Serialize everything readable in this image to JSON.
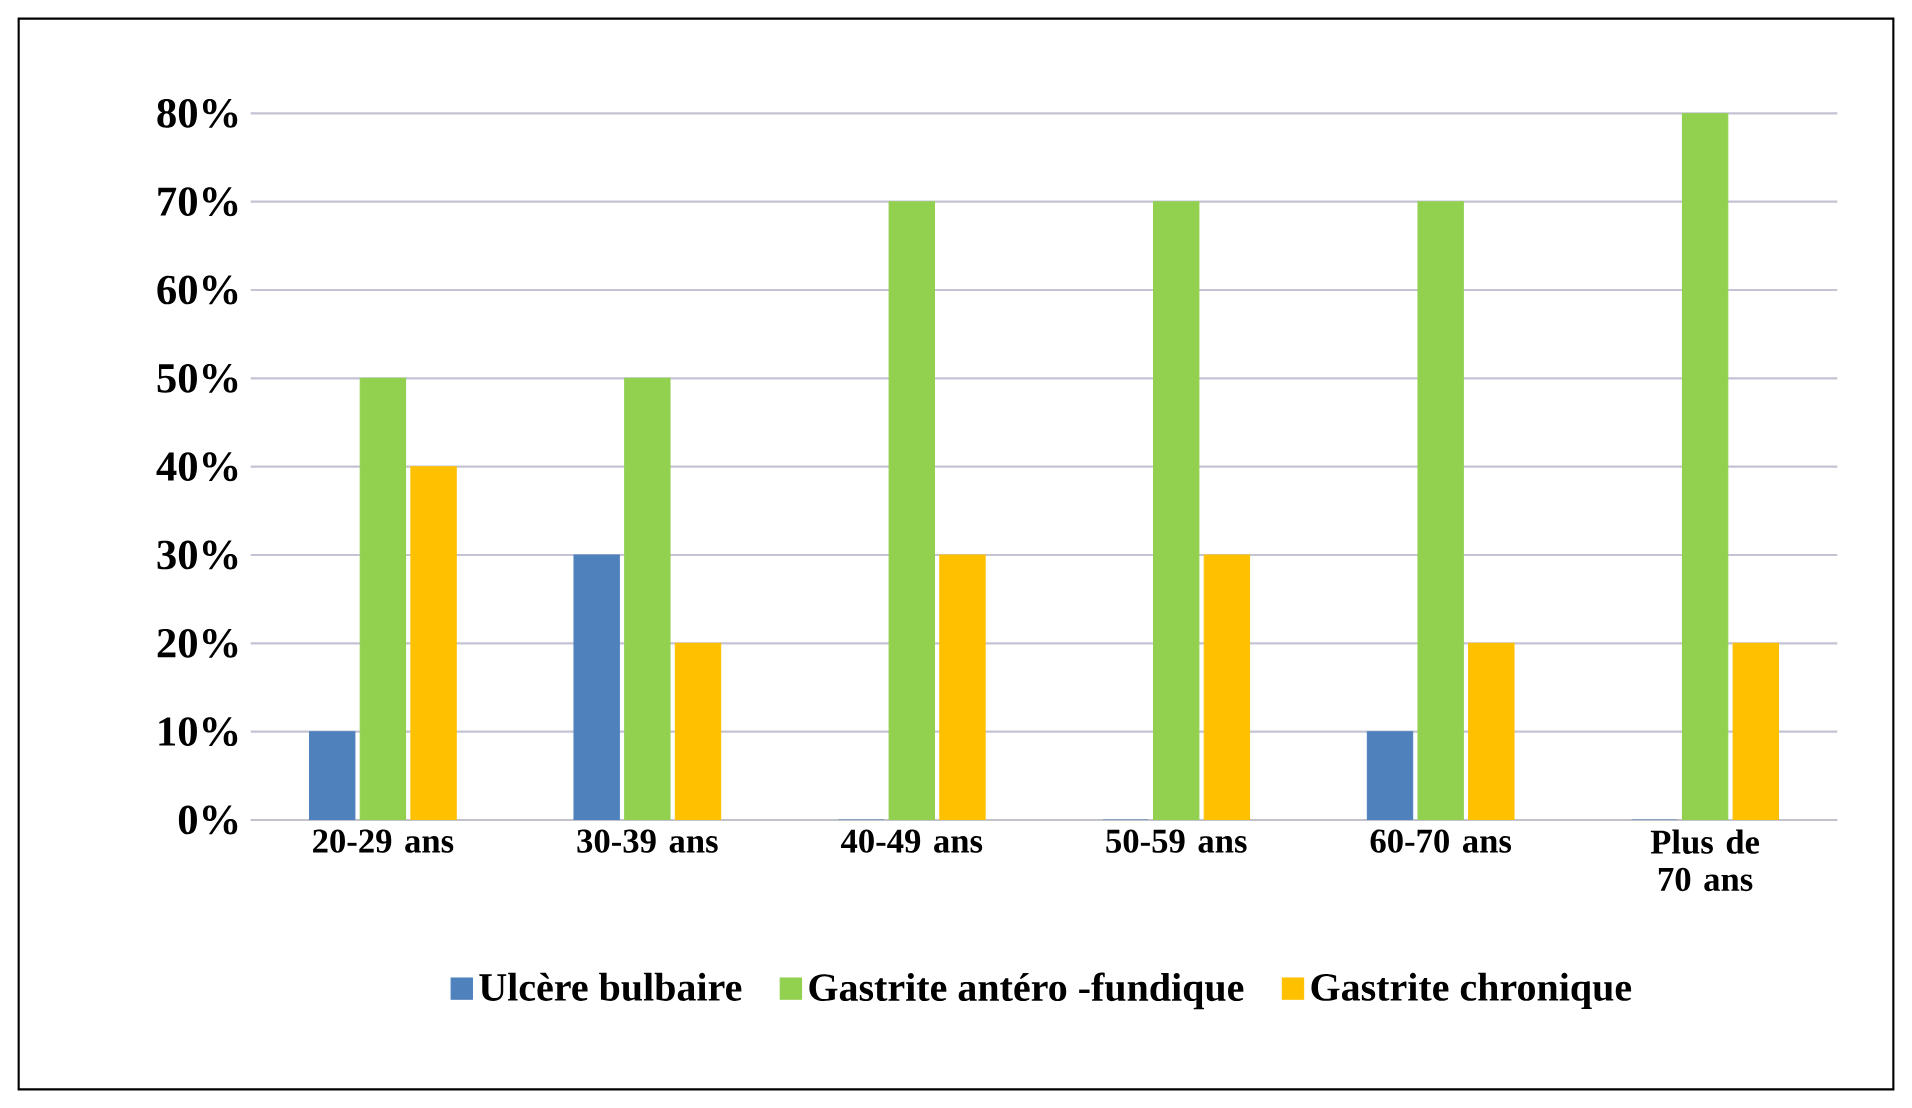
{
  "chart_data": {
    "type": "bar",
    "categories": [
      "20-29 ans",
      "30-39 ans",
      "40-49 ans",
      "50-59 ans",
      "60-70 ans",
      "Plus de 70 ans"
    ],
    "series": [
      {
        "name": "Ulcère bulbaire",
        "color": "#4f81bd",
        "values": [
          10,
          30,
          0,
          0,
          10,
          0
        ]
      },
      {
        "name": "Gastrite antéro -fundique",
        "color": "#92d050",
        "values": [
          50,
          50,
          70,
          70,
          70,
          80
        ]
      },
      {
        "name": "Gastrite chronique",
        "color": "#ffc000",
        "values": [
          40,
          20,
          30,
          30,
          20,
          20
        ]
      }
    ],
    "ylim": [
      0,
      80
    ],
    "yticks": [
      {
        "value": 0,
        "label": "0%"
      },
      {
        "value": 10,
        "label": "10%"
      },
      {
        "value": 20,
        "label": "20%"
      },
      {
        "value": 30,
        "label": "30%"
      },
      {
        "value": 40,
        "label": "40%"
      },
      {
        "value": 50,
        "label": "50%"
      },
      {
        "value": 60,
        "label": "60%"
      },
      {
        "value": 70,
        "label": "70%"
      },
      {
        "value": 80,
        "label": "80%"
      }
    ],
    "grid": "y",
    "legend": "bottom"
  }
}
